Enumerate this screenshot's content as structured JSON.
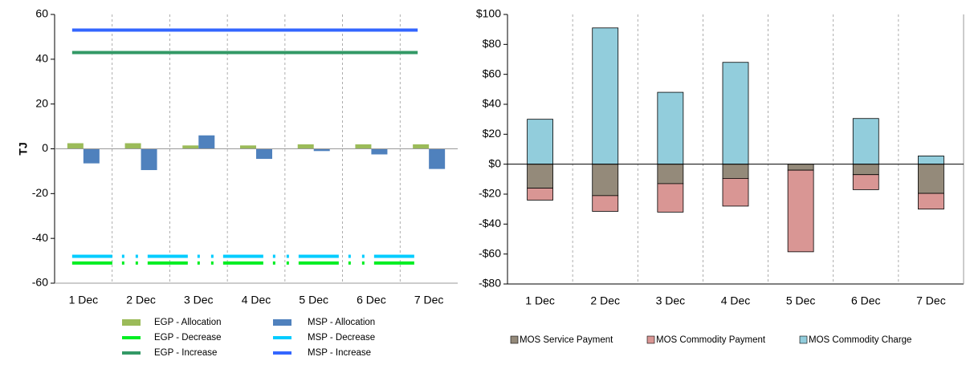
{
  "chart_data": [
    {
      "type": "bar",
      "y_label": "TJ",
      "categories": [
        "1 Dec",
        "2 Dec",
        "3 Dec",
        "4 Dec",
        "5 Dec",
        "6 Dec",
        "7 Dec"
      ],
      "ylim": [
        -60,
        60
      ],
      "yticks": [
        -60,
        -40,
        -20,
        0,
        20,
        40,
        60
      ],
      "grid": "vertical",
      "series": [
        {
          "name": "EGP - Allocation",
          "kind": "bar",
          "color": "#9bbb59",
          "values": [
            2.5,
            2.5,
            1.5,
            1.5,
            2,
            2,
            2
          ]
        },
        {
          "name": "MSP - Allocation",
          "kind": "bar",
          "color": "#4f81bd",
          "values": [
            -6.5,
            -9.5,
            6,
            -4.5,
            -1,
            -2.5,
            -9
          ]
        },
        {
          "name": "EGP - Decrease",
          "kind": "line",
          "style": "dashed",
          "color": "#00ee22",
          "values": [
            -51,
            -51,
            -51,
            -51,
            -51,
            -51,
            -51
          ]
        },
        {
          "name": "MSP - Decrease",
          "kind": "line",
          "style": "dashed",
          "color": "#00ccff",
          "values": [
            -48,
            -48,
            -48,
            -48,
            -48,
            -48,
            -48
          ]
        },
        {
          "name": "EGP - Increase",
          "kind": "line",
          "style": "solid",
          "color": "#339966",
          "values": [
            43,
            43,
            43,
            43,
            43,
            43,
            43
          ]
        },
        {
          "name": "MSP - Increase",
          "kind": "line",
          "style": "solid",
          "color": "#3366ff",
          "values": [
            53,
            53,
            53,
            53,
            53,
            53,
            53
          ]
        }
      ]
    },
    {
      "type": "stacked_bar",
      "categories": [
        "1 Dec",
        "2 Dec",
        "3 Dec",
        "4 Dec",
        "5 Dec",
        "6 Dec",
        "7 Dec"
      ],
      "ylim": [
        -80,
        100
      ],
      "grid": "vertical",
      "yticks": [
        {
          "value": -80,
          "label": "-$80"
        },
        {
          "value": -60,
          "label": "-$60"
        },
        {
          "value": -40,
          "label": "-$40"
        },
        {
          "value": -20,
          "label": "-$20"
        },
        {
          "value": 0,
          "label": "$0"
        },
        {
          "value": 20,
          "label": "$20"
        },
        {
          "value": 40,
          "label": "$40"
        },
        {
          "value": 60,
          "label": "$60"
        },
        {
          "value": 80,
          "label": "$80"
        },
        {
          "value": 100,
          "label": "$100"
        }
      ],
      "series": [
        {
          "name": "MOS Service Payment",
          "color": "#948a7a",
          "values": [
            -16,
            -21,
            -13,
            -9.5,
            -4,
            -7,
            -19.5
          ]
        },
        {
          "name": "MOS Commodity Payment",
          "color": "#d99694",
          "values": [
            -8,
            -10.5,
            -19,
            -18.5,
            -54.5,
            -10,
            -10.5
          ]
        },
        {
          "name": "MOS Commodity Charge",
          "color": "#92cddc",
          "values": [
            30,
            91,
            48,
            68,
            0,
            30.5,
            5.5
          ]
        }
      ]
    }
  ]
}
